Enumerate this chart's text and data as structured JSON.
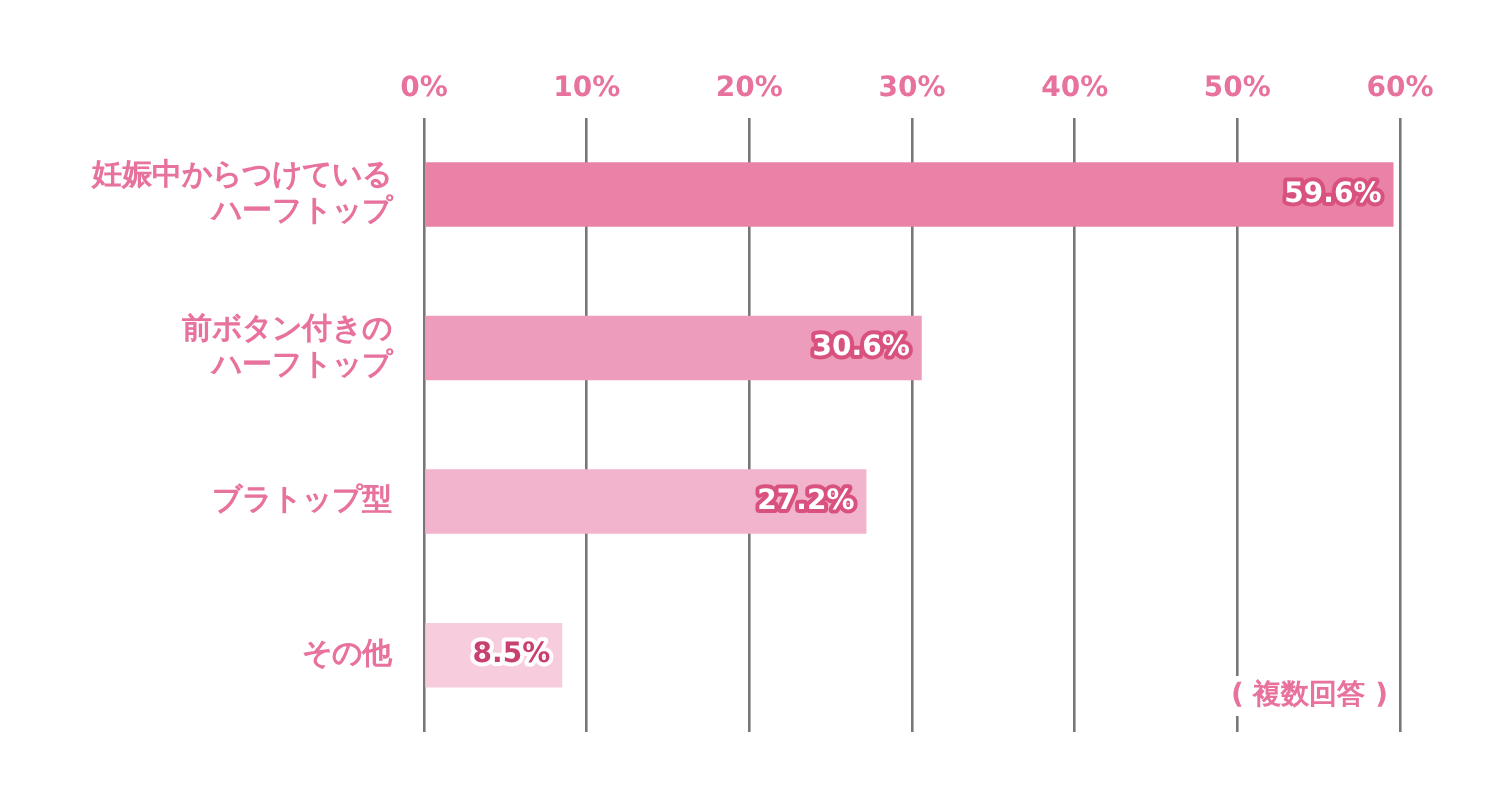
{
  "chart_data": {
    "type": "bar",
    "orientation": "horizontal",
    "categories": [
      "妊娠中からつけているハーフトップ",
      "前ボタン付きのハーフトップ",
      "ブラトップ型",
      "その他"
    ],
    "values": [
      59.6,
      30.6,
      27.2,
      8.5
    ],
    "colors": [
      "#ea82a8",
      "#ee9cbb",
      "#f2b3cc",
      "#f7cddd"
    ],
    "xlim": [
      0,
      60
    ],
    "xticks": [
      {
        "value": 0,
        "label": "0%"
      },
      {
        "value": 10,
        "label": "10%"
      },
      {
        "value": 20,
        "label": "20%"
      },
      {
        "value": 30,
        "label": "30%"
      },
      {
        "value": 40,
        "label": "40%"
      },
      {
        "value": 50,
        "label": "50%"
      },
      {
        "value": 60,
        "label": "60%"
      }
    ],
    "value_labels": [
      "59.6%",
      "30.6%",
      "27.2%",
      "8.5%"
    ],
    "grid": "x",
    "legend": false,
    "annotations": [
      "( 複数回答 )"
    ]
  }
}
